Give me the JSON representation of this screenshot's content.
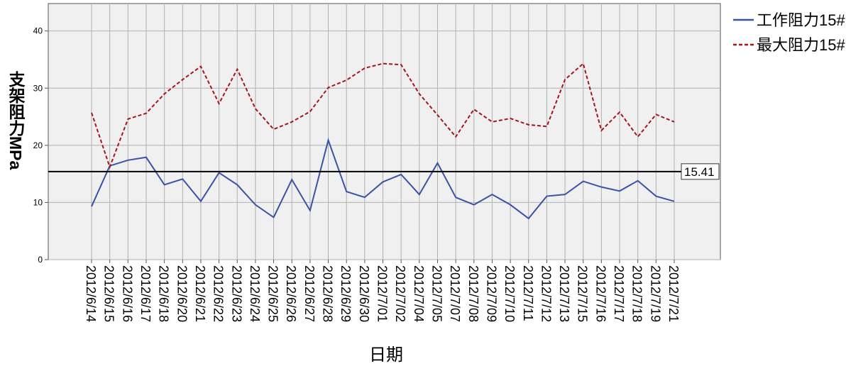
{
  "chart_data": {
    "type": "line",
    "x_label": "日期",
    "y_label": "支架阻力MPa",
    "categories": [
      "2012/6/14",
      "2012/6/15",
      "2012/6/16",
      "2012/6/17",
      "2012/6/18",
      "2012/6/20",
      "2012/6/21",
      "2012/6/22",
      "2012/6/23",
      "2012/6/24",
      "2012/6/25",
      "2012/6/26",
      "2012/6/27",
      "2012/6/28",
      "2012/6/29",
      "2012/6/30",
      "2012/7/01",
      "2012/7/02",
      "2012/7/04",
      "2012/7/05",
      "2012/7/07",
      "2012/7/08",
      "2012/7/09",
      "2012/7/10",
      "2012/7/11",
      "2012/7/12",
      "2012/7/13",
      "2012/7/15",
      "2012/7/16",
      "2012/7/17",
      "2012/7/18",
      "2012/7/19",
      "2012/7/21"
    ],
    "series": [
      {
        "name": "工作阻力15#",
        "color": "#3a53a4",
        "line_style": "solid",
        "values": [
          9.3,
          16.4,
          17.4,
          17.9,
          13.1,
          14.1,
          10.2,
          15.2,
          13.1,
          9.6,
          7.4,
          14.0,
          8.6,
          20.9,
          11.9,
          10.9,
          13.6,
          14.9,
          11.4,
          16.9,
          10.9,
          9.6,
          11.4,
          9.6,
          7.2,
          11.1,
          11.4,
          13.7,
          12.7,
          12.0,
          13.8,
          11.1,
          10.2
        ]
      },
      {
        "name": "最大阻力15#",
        "color": "#a3171c",
        "line_style": "dashed",
        "values": [
          25.7,
          16.2,
          24.6,
          25.6,
          29.0,
          31.5,
          33.8,
          27.3,
          33.3,
          26.4,
          22.8,
          24.1,
          25.9,
          30.1,
          31.4,
          33.5,
          34.3,
          34.1,
          29.0,
          25.3,
          21.5,
          26.3,
          24.1,
          24.7,
          23.6,
          23.3,
          31.5,
          34.3,
          22.6,
          25.8,
          21.5,
          25.4,
          24.1
        ]
      }
    ],
    "reference_line": {
      "value": 15.41,
      "color": "#000000"
    },
    "ylim": [
      0,
      44.8
    ],
    "yticks": [
      0,
      10,
      20,
      30,
      40
    ],
    "grid": true,
    "legend": "top-right"
  }
}
